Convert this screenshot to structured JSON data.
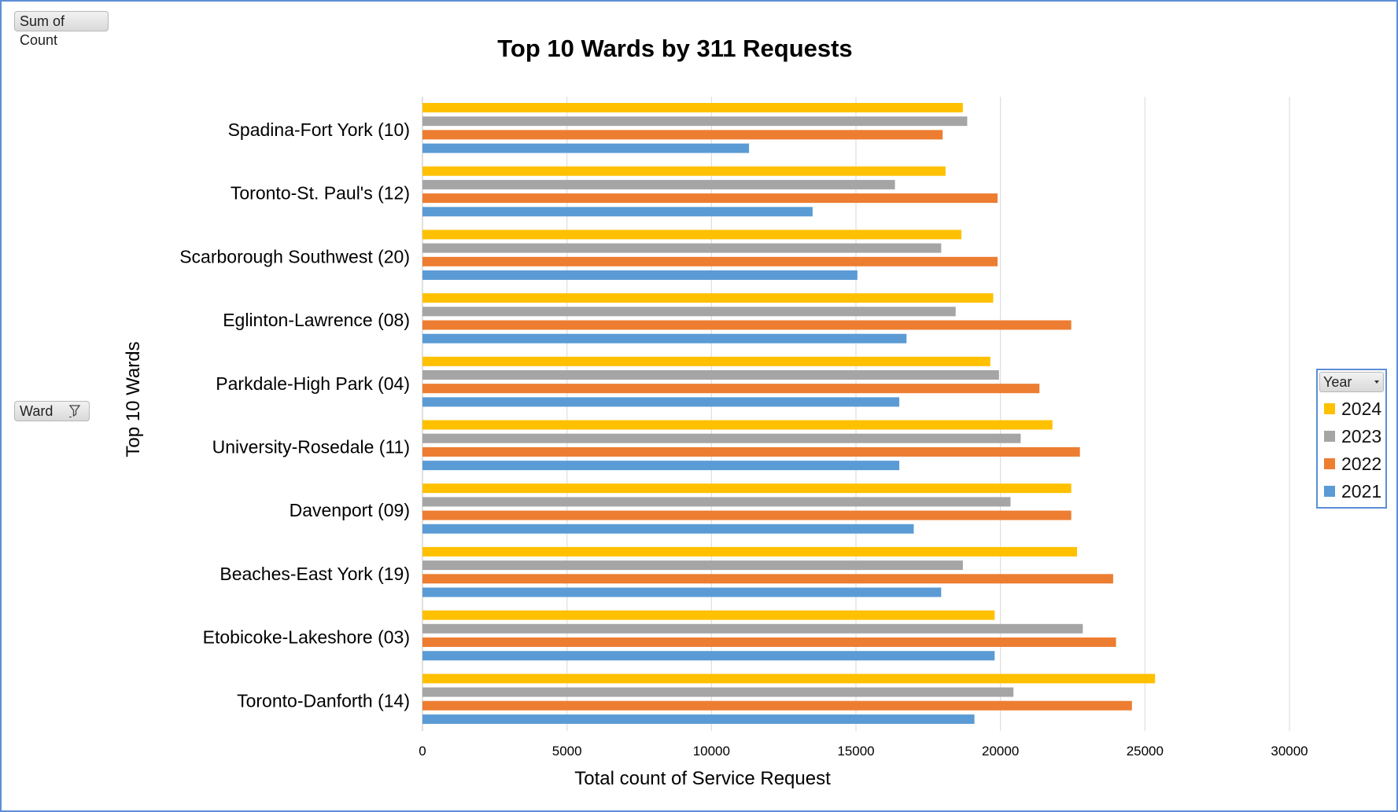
{
  "pivot": {
    "sum_label": "Sum of Count",
    "ward_label": "Ward",
    "year_field_label": "Year"
  },
  "colors": {
    "2024": "#ffc000",
    "2023": "#a5a5a5",
    "2022": "#ed7d31",
    "2021": "#5b9bd5",
    "gridline": "#d9d9d9",
    "frame": "#5b8ed6"
  },
  "icons": {
    "ward_filter": "filter-icon",
    "year_dropdown": "chevron-down-icon"
  },
  "chart_data": {
    "type": "bar",
    "orientation": "horizontal",
    "title": "Top 10 Wards by 311 Requests",
    "xlabel": "Total count of Service Request",
    "ylabel": "Top 10 Wards",
    "xlim": [
      0,
      30000
    ],
    "xticks": [
      0,
      5000,
      10000,
      15000,
      20000,
      25000,
      30000
    ],
    "grid": true,
    "legend_position": "right",
    "categories": [
      "Spadina-Fort York (10)",
      "Toronto-St. Paul's (12)",
      "Scarborough Southwest (20)",
      "Eglinton-Lawrence (08)",
      "Parkdale-High Park (04)",
      "University-Rosedale (11)",
      "Davenport (09)",
      "Beaches-East York (19)",
      "Etobicoke-Lakeshore (03)",
      "Toronto-Danforth (14)"
    ],
    "series": [
      {
        "name": "2024",
        "values": [
          18700,
          18100,
          18650,
          19750,
          19650,
          21800,
          22450,
          22650,
          19800,
          25350
        ]
      },
      {
        "name": "2023",
        "values": [
          18850,
          16350,
          17950,
          18450,
          19950,
          20700,
          20350,
          18700,
          22850,
          20450
        ]
      },
      {
        "name": "2022",
        "values": [
          18000,
          19900,
          19900,
          22450,
          21350,
          22750,
          22450,
          23900,
          24000,
          24550
        ]
      },
      {
        "name": "2021",
        "values": [
          11300,
          13500,
          15050,
          16750,
          16500,
          16500,
          17000,
          17950,
          19800,
          19100
        ]
      }
    ]
  }
}
